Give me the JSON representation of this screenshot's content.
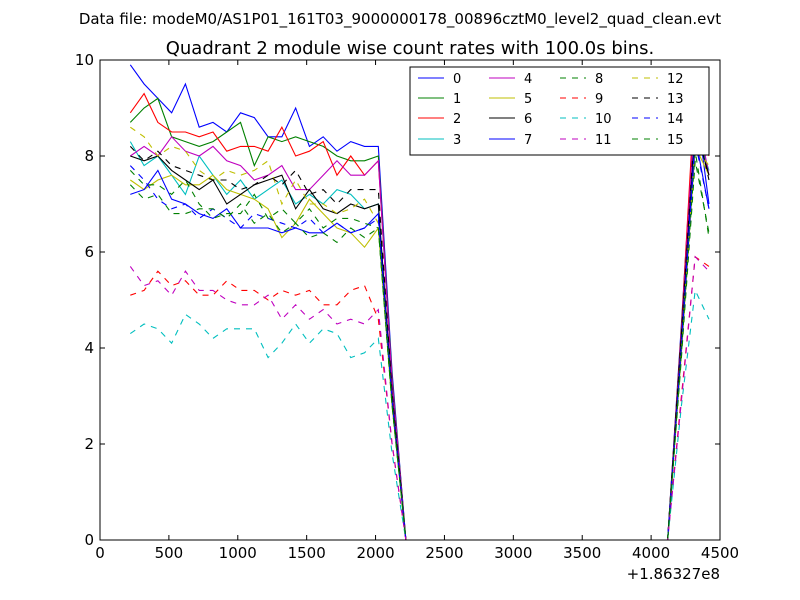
{
  "header": {
    "data_file": "Data file: modeM0/AS1P01_161T03_9000000178_00896cztM0_level2_quad_clean.evt"
  },
  "chart_data": {
    "type": "line",
    "title": "Quadrant 2 module wise count rates with 100.0s bins.",
    "xlabel": "",
    "ylabel": "",
    "x_offset_label": "+1.86327e8",
    "xlim": [
      0,
      4500
    ],
    "ylim": [
      0,
      10
    ],
    "xticks": [
      0,
      500,
      1000,
      1500,
      2000,
      2500,
      3000,
      3500,
      4000,
      4500
    ],
    "xtick_labels": [
      "0",
      "500",
      "1000",
      "1500",
      "2000",
      "2500",
      "3000",
      "3500",
      "4000",
      "4500"
    ],
    "yticks": [
      0,
      2,
      4,
      6,
      8,
      10
    ],
    "ytick_labels": [
      "0",
      "2",
      "4",
      "6",
      "8",
      "10"
    ],
    "legend_position": "top-right",
    "x": [
      220,
      320,
      420,
      520,
      620,
      720,
      820,
      920,
      1020,
      1120,
      1220,
      1320,
      1420,
      1520,
      1620,
      1720,
      1820,
      1920,
      2020,
      2120,
      2220,
      2320,
      2420,
      2520,
      2620,
      2720,
      2820,
      2920,
      3020,
      3120,
      3220,
      3320,
      3420,
      3520,
      3620,
      3720,
      3820,
      3920,
      4020,
      4120,
      4220,
      4320,
      4420
    ],
    "series": [
      {
        "name": "0",
        "color": "#0000ff",
        "dash": false,
        "values": [
          9.9,
          9.5,
          9.2,
          8.9,
          9.5,
          8.6,
          8.7,
          8.5,
          8.9,
          8.8,
          8.4,
          8.4,
          9.0,
          8.2,
          8.4,
          8.1,
          8.3,
          8.2,
          8.2,
          3.5,
          0,
          0,
          0,
          0,
          0,
          0,
          0,
          0,
          0,
          0,
          0,
          0,
          0,
          0,
          0,
          0,
          0,
          0,
          0,
          0,
          4.5,
          9.2,
          7.0
        ]
      },
      {
        "name": "1",
        "color": "#008000",
        "dash": false,
        "values": [
          8.7,
          9.0,
          9.2,
          8.4,
          8.3,
          8.2,
          8.3,
          8.5,
          8.7,
          7.8,
          8.4,
          8.3,
          8.4,
          8.3,
          8.2,
          8.0,
          7.9,
          7.9,
          8.0,
          3.4,
          0,
          0,
          0,
          0,
          0,
          0,
          0,
          0,
          0,
          0,
          0,
          0,
          0,
          0,
          0,
          0,
          0,
          0,
          0,
          0,
          4.4,
          9.1,
          8.2
        ]
      },
      {
        "name": "2",
        "color": "#ff0000",
        "dash": false,
        "values": [
          8.9,
          9.3,
          8.7,
          8.5,
          8.5,
          8.4,
          8.5,
          8.1,
          8.2,
          8.2,
          8.1,
          8.6,
          8.0,
          8.1,
          8.3,
          7.6,
          8.0,
          7.6,
          7.9,
          3.3,
          0,
          0,
          0,
          0,
          0,
          0,
          0,
          0,
          0,
          0,
          0,
          0,
          0,
          0,
          0,
          0,
          0,
          0,
          0,
          0,
          4.4,
          9.5,
          8.0
        ]
      },
      {
        "name": "3",
        "color": "#00bfbf",
        "dash": false,
        "values": [
          8.3,
          7.8,
          8.0,
          7.6,
          7.2,
          8.0,
          7.6,
          7.2,
          7.5,
          7.1,
          7.3,
          7.5,
          7.0,
          7.2,
          7.0,
          7.3,
          7.2,
          6.9,
          7.0,
          3.0,
          0,
          0,
          0,
          0,
          0,
          0,
          0,
          0,
          0,
          0,
          0,
          0,
          0,
          0,
          0,
          0,
          0,
          0,
          0,
          0,
          4.1,
          8.6,
          7.7
        ]
      },
      {
        "name": "4",
        "color": "#bf00bf",
        "dash": false,
        "values": [
          8.0,
          8.2,
          8.0,
          8.4,
          8.1,
          8.0,
          8.2,
          7.9,
          7.8,
          7.5,
          7.6,
          7.8,
          7.3,
          7.3,
          7.6,
          7.9,
          7.6,
          7.6,
          7.9,
          3.3,
          0,
          0,
          0,
          0,
          0,
          0,
          0,
          0,
          0,
          0,
          0,
          0,
          0,
          0,
          0,
          0,
          0,
          0,
          0,
          0,
          4.3,
          9.1,
          7.6
        ]
      },
      {
        "name": "5",
        "color": "#bfbf00",
        "dash": false,
        "values": [
          7.5,
          7.3,
          7.5,
          7.6,
          7.4,
          7.4,
          7.6,
          7.3,
          7.2,
          7.1,
          6.9,
          6.3,
          6.6,
          7.1,
          6.8,
          6.5,
          6.4,
          6.1,
          6.5,
          2.8,
          0,
          0,
          0,
          0,
          0,
          0,
          0,
          0,
          0,
          0,
          0,
          0,
          0,
          0,
          0,
          0,
          0,
          0,
          0,
          0,
          3.9,
          8.2,
          7.6
        ]
      },
      {
        "name": "6",
        "color": "#000000",
        "dash": false,
        "values": [
          8.0,
          7.9,
          8.0,
          7.7,
          7.5,
          7.3,
          7.5,
          7.0,
          7.2,
          7.4,
          7.5,
          7.6,
          6.9,
          7.3,
          6.9,
          6.8,
          7.0,
          6.9,
          7.0,
          3.0,
          0,
          0,
          0,
          0,
          0,
          0,
          0,
          0,
          0,
          0,
          0,
          0,
          0,
          0,
          0,
          0,
          0,
          0,
          0,
          0,
          4.2,
          8.6,
          7.6
        ]
      },
      {
        "name": "7",
        "color": "#0000ff",
        "dash": false,
        "values": [
          7.2,
          7.3,
          7.7,
          7.1,
          7.0,
          6.8,
          6.7,
          6.9,
          6.5,
          6.5,
          6.5,
          6.4,
          6.5,
          6.4,
          6.4,
          6.6,
          6.4,
          6.5,
          6.8,
          2.9,
          0,
          0,
          0,
          0,
          0,
          0,
          0,
          0,
          0,
          0,
          0,
          0,
          0,
          0,
          0,
          0,
          0,
          0,
          0,
          0,
          4.1,
          8.4,
          6.9
        ]
      },
      {
        "name": "8",
        "color": "#008000",
        "dash": true,
        "values": [
          7.7,
          7.4,
          7.4,
          7.2,
          7.5,
          7.0,
          6.7,
          6.8,
          6.8,
          7.2,
          6.7,
          6.9,
          6.6,
          6.9,
          6.5,
          6.7,
          6.7,
          6.6,
          6.5,
          2.8,
          0,
          0,
          0,
          0,
          0,
          0,
          0,
          0,
          0,
          0,
          0,
          0,
          0,
          0,
          0,
          0,
          0,
          0,
          0,
          0,
          3.9,
          8.1,
          6.3
        ]
      },
      {
        "name": "9",
        "color": "#ff0000",
        "dash": true,
        "values": [
          5.1,
          5.2,
          5.6,
          5.3,
          5.4,
          5.1,
          5.1,
          5.4,
          5.2,
          5.2,
          5.0,
          5.2,
          5.1,
          5.2,
          4.9,
          4.9,
          5.2,
          5.3,
          4.6,
          2.0,
          0,
          0,
          0,
          0,
          0,
          0,
          0,
          0,
          0,
          0,
          0,
          0,
          0,
          0,
          0,
          0,
          0,
          0,
          0,
          0,
          3.0,
          5.9,
          5.7
        ]
      },
      {
        "name": "10",
        "color": "#00bfbf",
        "dash": true,
        "values": [
          4.3,
          4.5,
          4.4,
          4.1,
          4.7,
          4.5,
          4.2,
          4.4,
          4.4,
          4.4,
          3.8,
          4.1,
          4.5,
          4.1,
          4.4,
          4.3,
          3.8,
          3.9,
          4.2,
          1.8,
          0,
          0,
          0,
          0,
          0,
          0,
          0,
          0,
          0,
          0,
          0,
          0,
          0,
          0,
          0,
          0,
          0,
          0,
          0,
          0,
          2.8,
          5.2,
          4.6
        ]
      },
      {
        "name": "11",
        "color": "#bf00bf",
        "dash": true,
        "values": [
          5.7,
          5.3,
          5.4,
          5.1,
          5.6,
          5.2,
          5.2,
          5.0,
          4.9,
          4.9,
          5.1,
          4.6,
          4.9,
          4.6,
          4.8,
          4.5,
          4.6,
          4.5,
          4.8,
          2.0,
          0,
          0,
          0,
          0,
          0,
          0,
          0,
          0,
          0,
          0,
          0,
          0,
          0,
          0,
          0,
          0,
          0,
          0,
          0,
          0,
          2.9,
          5.9,
          5.6
        ]
      },
      {
        "name": "12",
        "color": "#bfbf00",
        "dash": true,
        "values": [
          8.6,
          8.4,
          8.0,
          8.2,
          8.1,
          7.7,
          7.5,
          7.7,
          7.6,
          7.7,
          7.9,
          7.0,
          7.5,
          7.0,
          7.0,
          6.8,
          6.9,
          7.1,
          6.6,
          2.9,
          0,
          0,
          0,
          0,
          0,
          0,
          0,
          0,
          0,
          0,
          0,
          0,
          0,
          0,
          0,
          0,
          0,
          0,
          0,
          0,
          4.1,
          8.2,
          7.8
        ]
      },
      {
        "name": "13",
        "color": "#000000",
        "dash": true,
        "values": [
          8.2,
          7.9,
          8.1,
          7.8,
          7.7,
          7.6,
          7.5,
          7.5,
          7.3,
          7.4,
          7.6,
          7.4,
          7.7,
          7.2,
          7.3,
          7.0,
          7.3,
          7.3,
          7.3,
          3.1,
          0,
          0,
          0,
          0,
          0,
          0,
          0,
          0,
          0,
          0,
          0,
          0,
          0,
          0,
          0,
          0,
          0,
          0,
          0,
          0,
          4.3,
          8.8,
          7.5
        ]
      },
      {
        "name": "14",
        "color": "#0000ff",
        "dash": true,
        "values": [
          7.8,
          7.5,
          7.1,
          6.9,
          7.0,
          6.7,
          6.9,
          6.7,
          6.5,
          6.8,
          6.7,
          6.6,
          6.5,
          6.7,
          6.4,
          6.6,
          6.4,
          6.5,
          6.7,
          2.9,
          0,
          0,
          0,
          0,
          0,
          0,
          0,
          0,
          0,
          0,
          0,
          0,
          0,
          0,
          0,
          0,
          0,
          0,
          0,
          0,
          4.0,
          8.3,
          6.9
        ]
      },
      {
        "name": "15",
        "color": "#008000",
        "dash": true,
        "values": [
          7.4,
          7.1,
          7.2,
          6.8,
          6.8,
          6.9,
          6.9,
          6.7,
          7.0,
          6.6,
          6.8,
          6.4,
          6.6,
          6.3,
          6.4,
          6.2,
          6.5,
          6.3,
          6.5,
          2.8,
          0,
          0,
          0,
          0,
          0,
          0,
          0,
          0,
          0,
          0,
          0,
          0,
          0,
          0,
          0,
          0,
          0,
          0,
          0,
          0,
          3.8,
          7.9,
          6.4
        ]
      }
    ]
  }
}
